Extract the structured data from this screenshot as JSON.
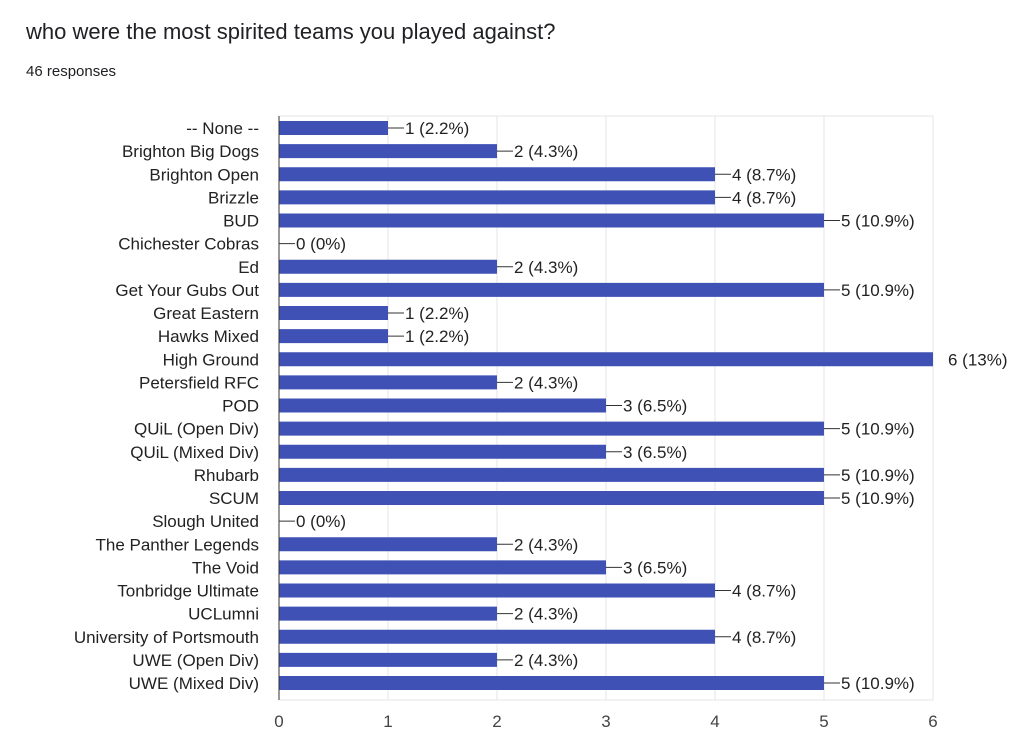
{
  "question": "who were the most spirited teams you played against?",
  "response_count": "46 responses",
  "colors": {
    "bar": "#3f51b5",
    "grid": "#e6e6e6",
    "leader": "#333333"
  },
  "chart_data": {
    "type": "bar",
    "orientation": "horizontal",
    "title": "who were the most spirited teams you played against?",
    "xlabel": "",
    "ylabel": "",
    "xlim": [
      0,
      6
    ],
    "x_ticks": [
      "0",
      "1",
      "2",
      "3",
      "4",
      "5",
      "6"
    ],
    "grid": true,
    "categories": [
      "-- None --",
      "Brighton Big Dogs",
      "Brighton Open",
      "Brizzle",
      "BUD",
      "Chichester Cobras",
      "Ed",
      "Get Your Gubs Out",
      "Great Eastern",
      "Hawks Mixed",
      "High Ground",
      "Petersfield RFC",
      "POD",
      "QUiL (Open Div)",
      "QUiL (Mixed Div)",
      "Rhubarb",
      "SCUM",
      "Slough United",
      "The Panther Legends",
      "The Void",
      "Tonbridge Ultimate",
      "UCLumni",
      "University of Portsmouth",
      "UWE (Open Div)",
      "UWE (Mixed Div)"
    ],
    "values": [
      1,
      2,
      4,
      4,
      5,
      0,
      2,
      5,
      1,
      1,
      6,
      2,
      3,
      5,
      3,
      5,
      5,
      0,
      2,
      3,
      4,
      2,
      4,
      2,
      5
    ],
    "data_labels": [
      "1 (2.2%)",
      "2 (4.3%)",
      "4 (8.7%)",
      "4 (8.7%)",
      "5 (10.9%)",
      "0 (0%)",
      "2 (4.3%)",
      "5 (10.9%)",
      "1 (2.2%)",
      "1 (2.2%)",
      "6 (13%)",
      "2 (4.3%)",
      "3 (6.5%)",
      "5 (10.9%)",
      "3 (6.5%)",
      "5 (10.9%)",
      "5 (10.9%)",
      "0 (0%)",
      "2 (4.3%)",
      "3 (6.5%)",
      "4 (8.7%)",
      "2 (4.3%)",
      "4 (8.7%)",
      "2 (4.3%)",
      "5 (10.9%)"
    ]
  }
}
